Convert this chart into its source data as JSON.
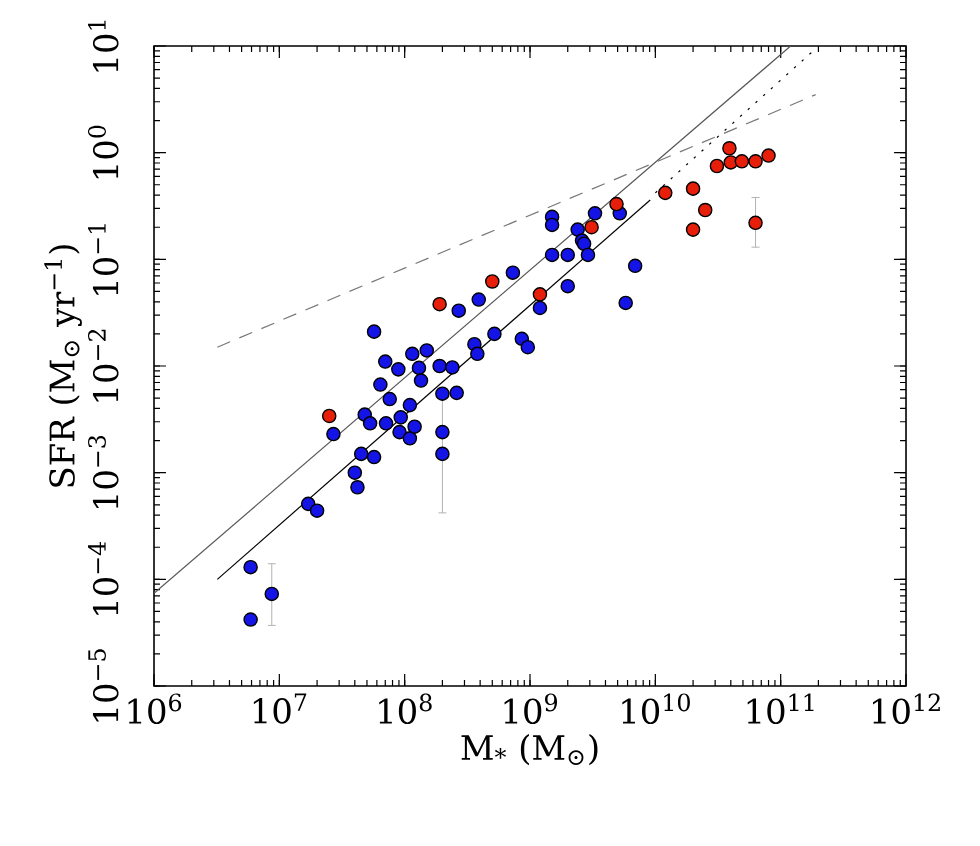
{
  "chart_data": {
    "type": "scatter",
    "xlabel": "M$_{*}$ (M$_{⊙}$)",
    "ylabel": "SFR (M$_{⊙}$ yr$^{−1}$)",
    "log": "xy",
    "grid": false,
    "xlim": [
      1000000.0,
      1000000000000.0
    ],
    "ylim": [
      1e-05,
      10
    ],
    "xticks": [
      {
        "value": 1000000.0,
        "label": "10$^{6}$"
      },
      {
        "value": 10000000.0,
        "label": "10$^{7}$"
      },
      {
        "value": 100000000.0,
        "label": "10$^{8}$"
      },
      {
        "value": 1000000000.0,
        "label": "10$^{9}$"
      },
      {
        "value": 10000000000.0,
        "label": "10$^{10}$"
      },
      {
        "value": 100000000000.0,
        "label": "10$^{11}$"
      },
      {
        "value": 1000000000000.0,
        "label": "10$^{12}$"
      }
    ],
    "yticks": [
      {
        "value": 1e-05,
        "label": "10$^{−5}$"
      },
      {
        "value": 0.0001,
        "label": "10$^{−4}$"
      },
      {
        "value": 0.001,
        "label": "10$^{−3}$"
      },
      {
        "value": 0.01,
        "label": "10$^{−2}$"
      },
      {
        "value": 0.1,
        "label": "10$^{−1}$"
      },
      {
        "value": 1,
        "label": "10$^{0}$"
      },
      {
        "value": 10,
        "label": "10$^{1}$"
      }
    ],
    "series": [
      {
        "type": "line",
        "color": "#555555",
        "line_style": "solid",
        "marker": "none",
        "x": [
          1000000.0,
          120000000000.0
        ],
        "values": [
          7.4e-05,
          10
        ]
      },
      {
        "type": "line",
        "color": "#000000",
        "line_style": "solid",
        "marker": "none",
        "x": [
          3200000.0,
          9100000000.0
        ],
        "values": [
          0.0001,
          0.36
        ]
      },
      {
        "type": "line",
        "color": "#000000",
        "line_style": "dotted",
        "marker": "none",
        "x": [
          10000000000.0,
          180000000000.0
        ],
        "values": [
          0.42,
          8.9
        ]
      },
      {
        "type": "line",
        "color": "#777777",
        "line_style": "dashed",
        "marker": "none",
        "x": [
          3200000.0,
          190000000000.0
        ],
        "values": [
          0.015,
          3.5
        ]
      },
      {
        "type": "scatter",
        "color": "#1414e6",
        "marker": "circle",
        "x": [
          5900000.0,
          5900000.0,
          8700000.0,
          17000000.0,
          20000000.0,
          27000000.0,
          40000000.0,
          42000000.0,
          45000000.0,
          57000000.0,
          57000000.0,
          48000000.0,
          53000000.0,
          64000000.0,
          70000000.0,
          76000000.0,
          71000000.0,
          89000000.0,
          93000000.0,
          91000000.0,
          110000000.0,
          110000000.0,
          115000000.0,
          120000000.0,
          130000000.0,
          135000000.0,
          150000000.0,
          190000000.0,
          200000000.0,
          200000000.0,
          200000000.0,
          240000000.0,
          260000000.0,
          270000000.0,
          390000000.0,
          360000000.0,
          380000000.0,
          520000000.0,
          730000000.0,
          860000000.0,
          960000000.0,
          1200000000.0,
          1500000000.0,
          1500000000.0,
          1500000000.0,
          2000000000.0,
          2000000000.0,
          2400000000.0,
          2600000000.0,
          2700000000.0,
          2900000000.0,
          3300000000.0,
          5200000000.0,
          5800000000.0,
          6900000000.0
        ],
        "values": [
          0.00013,
          4.2e-05,
          7.3e-05,
          0.00051,
          0.00044,
          0.0023,
          0.001,
          0.00073,
          0.0015,
          0.0014,
          0.021,
          0.0035,
          0.0029,
          0.0067,
          0.011,
          0.0049,
          0.0029,
          0.0093,
          0.0033,
          0.0024,
          0.0021,
          0.0043,
          0.013,
          0.0027,
          0.0096,
          0.0073,
          0.014,
          0.01,
          0.0055,
          0.0024,
          0.0015,
          0.0097,
          0.0056,
          0.033,
          0.042,
          0.016,
          0.013,
          0.02,
          0.075,
          0.018,
          0.015,
          0.035,
          0.25,
          0.21,
          0.11,
          0.11,
          0.056,
          0.19,
          0.15,
          0.14,
          0.11,
          0.27,
          0.27,
          0.039,
          0.087
        ],
        "errors": [
          null,
          null,
          [
            3.7e-05,
            0.00014
          ],
          null,
          null,
          null,
          null,
          null,
          null,
          null,
          null,
          null,
          null,
          null,
          null,
          null,
          null,
          null,
          null,
          null,
          null,
          null,
          null,
          null,
          null,
          null,
          null,
          null,
          null,
          null,
          [
            0.00042,
            0.0056
          ],
          null,
          null,
          null,
          null,
          null,
          null,
          null,
          null,
          null,
          null,
          null,
          null,
          null,
          null,
          null,
          null,
          null,
          null,
          null,
          null,
          null,
          null,
          null,
          null
        ]
      },
      {
        "type": "scatter",
        "color": "#e61e0a",
        "marker": "circle",
        "x": [
          25000000.0,
          190000000.0,
          500000000.0,
          1200000000.0,
          3100000000.0,
          4900000000.0,
          12000000000.0,
          20000000000.0,
          20000000000.0,
          25000000000.0,
          31000000000.0,
          39000000000.0,
          40000000000.0,
          49000000000.0,
          63000000000.0,
          80000000000.0,
          63000000000.0
        ],
        "values": [
          0.0034,
          0.038,
          0.062,
          0.047,
          0.2,
          0.33,
          0.42,
          0.46,
          0.19,
          0.29,
          0.75,
          1.1,
          0.81,
          0.83,
          0.83,
          0.94,
          0.22
        ],
        "errors": [
          null,
          null,
          null,
          null,
          null,
          null,
          null,
          null,
          null,
          null,
          null,
          null,
          null,
          null,
          null,
          null,
          [
            0.13,
            0.38
          ]
        ]
      }
    ]
  }
}
